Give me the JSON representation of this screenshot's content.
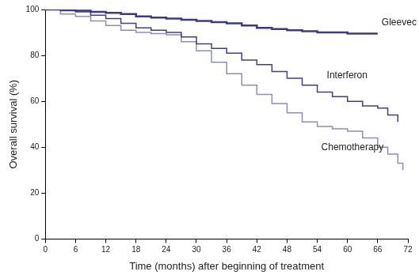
{
  "chart_data": {
    "type": "line",
    "x_label": "Time (months) after beginning of treatment",
    "y_label": "Overall survival (%)",
    "x": [
      0,
      3,
      6,
      9,
      12,
      15,
      18,
      21,
      24,
      27,
      30,
      33,
      36,
      39,
      42,
      45,
      48,
      51,
      54,
      57,
      60,
      63,
      66,
      68,
      70,
      71
    ],
    "series": [
      {
        "name": "Gleevec",
        "color": "#3b3a88",
        "values": [
          100,
          100,
          99.5,
          99,
          98.5,
          98,
          97,
          96.5,
          96,
          95.5,
          95,
          94.5,
          94,
          93,
          92,
          91.5,
          91,
          90.5,
          90,
          90,
          89.5,
          89.5,
          89.5,
          null,
          null,
          null
        ]
      },
      {
        "name": "Interferon",
        "color": "#3f3f8f",
        "values": [
          100,
          99.5,
          99,
          97.5,
          96,
          94,
          92,
          91,
          90,
          88,
          85,
          83,
          81,
          78,
          76,
          73,
          70,
          67,
          64,
          62,
          60,
          58,
          57,
          54,
          51,
          null
        ]
      },
      {
        "name": "Chemotherapy",
        "color": "#8d8cc2",
        "values": [
          100,
          98,
          97,
          95,
          93,
          91,
          90,
          89.5,
          89,
          86,
          82,
          77,
          72,
          67,
          63,
          59,
          55,
          51,
          49,
          48,
          47,
          44,
          40,
          37,
          33,
          30
        ]
      }
    ],
    "xlim": [
      0,
      72
    ],
    "xticks": [
      0,
      6,
      12,
      18,
      24,
      30,
      36,
      42,
      48,
      54,
      60,
      66,
      72
    ],
    "ylim": [
      0,
      100
    ],
    "yticks": [
      0,
      20,
      40,
      60,
      80,
      100
    ],
    "grid": false,
    "line_style": "steps",
    "marker": "none"
  }
}
